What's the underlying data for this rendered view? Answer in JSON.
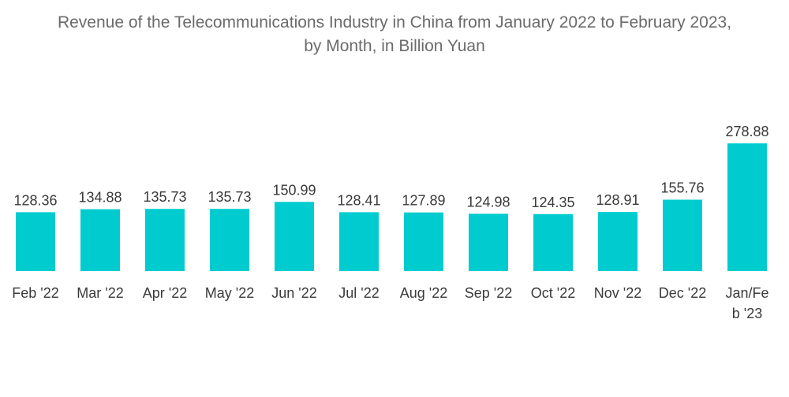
{
  "chart_data": {
    "type": "bar",
    "title_lines": [
      "Revenue of the Telecommunications Industry in China from January 2022 to February 2023,",
      "by Month, in Billion Yuan"
    ],
    "categories": [
      [
        "Feb '22"
      ],
      [
        "Mar '22"
      ],
      [
        "Apr '22"
      ],
      [
        "May '22"
      ],
      [
        "Jun '22"
      ],
      [
        "Jul '22"
      ],
      [
        "Aug '22"
      ],
      [
        "Sep '22"
      ],
      [
        "Oct '22"
      ],
      [
        "Nov '22"
      ],
      [
        "Dec '22"
      ],
      [
        "Jan/Fe",
        "b '23"
      ]
    ],
    "values": [
      128.36,
      134.88,
      135.73,
      135.73,
      150.99,
      128.41,
      127.89,
      124.98,
      124.35,
      128.91,
      155.76,
      278.88
    ],
    "value_labels": [
      "128.36",
      "134.88",
      "135.73",
      "135.73",
      "150.99",
      "128.41",
      "127.89",
      "124.98",
      "124.35",
      "128.91",
      "155.76",
      "278.88"
    ],
    "xlabel": "",
    "ylabel": "",
    "ylim": [
      0,
      278.88
    ],
    "grid": false,
    "legend": "none",
    "bar_color": "#00cccf"
  }
}
